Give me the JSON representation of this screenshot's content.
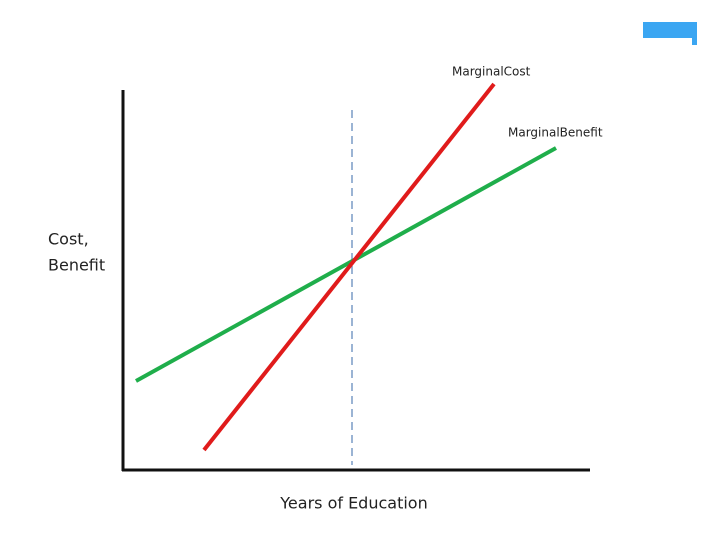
{
  "diagram": {
    "y_axis_label": [
      "Cost,",
      "Benefit"
    ],
    "x_axis_label": "Years of Education",
    "curves": [
      {
        "label": "MarginalCost"
      },
      {
        "label": "MarginalBenefit"
      }
    ]
  }
}
